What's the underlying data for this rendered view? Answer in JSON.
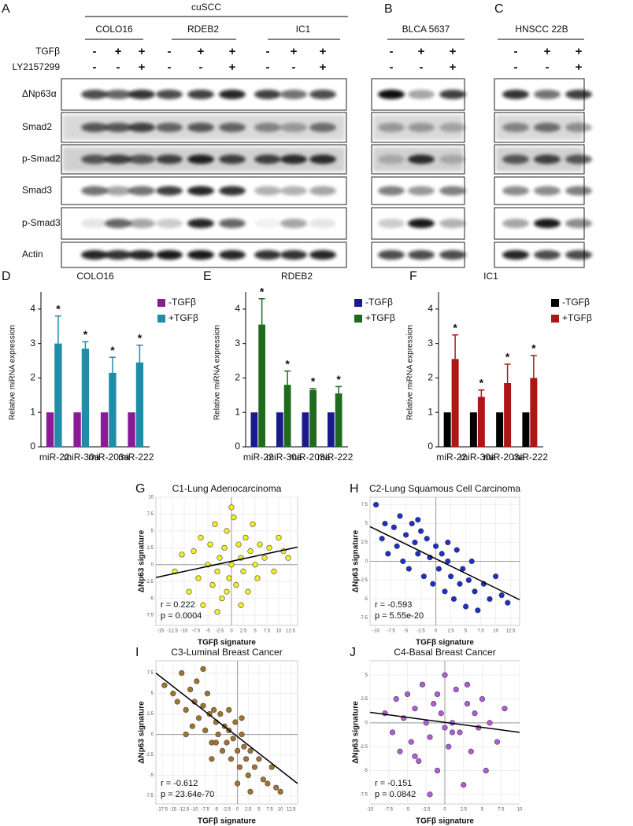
{
  "blots": {
    "panels": [
      {
        "label": "A",
        "group": "cuSCC",
        "cell_lines": [
          "COLO16",
          "RDEB2",
          "IC1"
        ]
      },
      {
        "label": "B",
        "cell_lines": [
          "BLCA 5637"
        ]
      },
      {
        "label": "C",
        "cell_lines": [
          "HNSCC 22B"
        ]
      }
    ],
    "treatments": [
      {
        "name": "TGFβ",
        "signs": [
          "-",
          "+",
          "+",
          "-",
          "+",
          "+",
          "-",
          "+",
          "+",
          "-",
          "+",
          "+",
          "-",
          "+",
          "+"
        ]
      },
      {
        "name": "LY2157299",
        "signs": [
          "-",
          "-",
          "+",
          "-",
          "-",
          "+",
          "-",
          "-",
          "+",
          "-",
          "-",
          "+",
          "-",
          "-",
          "+"
        ]
      }
    ],
    "proteins": [
      "ΔNp63α",
      "Smad2",
      "p-Smad2",
      "Smad3",
      "p-Smad3",
      "Actin"
    ]
  },
  "chart_data": [
    {
      "type": "bar",
      "panel": "D",
      "title": "COLO16",
      "y_label": "Relative miRNA expression",
      "categories": [
        "miR-22",
        "miR-30a",
        "miR-203a",
        "miR-222"
      ],
      "series": [
        {
          "name": "-TGFβ",
          "color": "#8b1a96",
          "values": [
            1,
            1,
            1,
            1
          ]
        },
        {
          "name": "+TGFβ",
          "color": "#1f8ca8",
          "values": [
            3.0,
            2.85,
            2.15,
            2.45
          ],
          "errors": [
            0.8,
            0.2,
            0.45,
            0.5
          ],
          "significance": [
            "*",
            "*",
            "*",
            "*"
          ]
        }
      ],
      "ylim": [
        0,
        4.5
      ],
      "yticks": [
        0,
        1,
        2,
        3,
        4
      ]
    },
    {
      "type": "bar",
      "panel": "E",
      "title": "RDEB2",
      "y_label": "Relative miRNA expression",
      "categories": [
        "miR-22",
        "miR-30a",
        "miR-203a",
        "miR-222"
      ],
      "series": [
        {
          "name": "-TGFβ",
          "color": "#1a1a8c",
          "values": [
            1,
            1,
            1,
            1
          ]
        },
        {
          "name": "+TGFβ",
          "color": "#1e6b1e",
          "values": [
            3.55,
            1.8,
            1.65,
            1.55
          ],
          "errors": [
            0.75,
            0.4,
            0.04,
            0.2
          ],
          "significance": [
            "*",
            "*",
            "*",
            "*"
          ]
        }
      ],
      "ylim": [
        0,
        4.5
      ],
      "yticks": [
        0,
        1,
        2,
        3,
        4
      ]
    },
    {
      "type": "bar",
      "panel": "F",
      "title": "IC1",
      "y_label": "Relative miRNA expression",
      "categories": [
        "miR-22",
        "miR-30a",
        "miR-203a",
        "miR-222"
      ],
      "series": [
        {
          "name": "-TGFβ",
          "color": "#000000",
          "values": [
            1,
            1,
            1,
            1
          ]
        },
        {
          "name": "+TGFβ",
          "color": "#b01515",
          "values": [
            2.55,
            1.45,
            1.85,
            2.0
          ],
          "errors": [
            0.7,
            0.2,
            0.55,
            0.65
          ],
          "significance": [
            "*",
            "*",
            "*",
            "*"
          ]
        }
      ],
      "ylim": [
        0,
        4.5
      ],
      "yticks": [
        0,
        1,
        2,
        3,
        4
      ]
    },
    {
      "type": "scatter",
      "panel": "G",
      "title": "C1-Lung Adenocarcinoma",
      "x_label": "TGFβ signature",
      "y_label": "ΔNp63 signature",
      "annotations": [
        "r = 0.222",
        "p = 0.0004"
      ],
      "color": "#f0f020",
      "x": [
        -12,
        -10.5,
        -9,
        -8,
        -7,
        -6.5,
        -6,
        -5,
        -4.5,
        -4,
        -3.5,
        -3,
        -2.5,
        -2,
        -1.5,
        -1,
        -0.5,
        0,
        0.5,
        1,
        1.5,
        2,
        2.5,
        3,
        3.5,
        4,
        4.5,
        5,
        5.5,
        6,
        7,
        8,
        9,
        10,
        11,
        12,
        -3,
        0,
        2,
        -1
      ],
      "y": [
        -1,
        1.5,
        -4,
        2,
        -2,
        4,
        -6,
        0,
        3,
        -3,
        6,
        -1,
        1,
        -5,
        2.5,
        5,
        -2,
        0,
        7,
        -3,
        3,
        1,
        -1,
        4,
        -4,
        2,
        6,
        0,
        -2,
        3,
        1,
        2.5,
        -1,
        4,
        2,
        1,
        -7,
        8.5,
        -6,
        -4
      ],
      "trend_line": {
        "x": [
          -16,
          14
        ],
        "y": [
          -1.9,
          2.6
        ]
      },
      "xlim": [
        -16,
        14
      ],
      "xticks": [
        -15,
        -12.5,
        -10,
        -7.5,
        -5,
        -2.5,
        0,
        2.5,
        5,
        7.5,
        10,
        12.5
      ],
      "ylim": [
        -9,
        10
      ],
      "yticks": [
        -7.5,
        -5,
        -2.5,
        0,
        2.5,
        5,
        7.5,
        10
      ],
      "grid": true
    },
    {
      "type": "scatter",
      "panel": "H",
      "title": "C2-Lung Squamous Cell Carcinoma",
      "x_label": "TGFβ signature",
      "y_label": "ΔNp63 signature",
      "annotations": [
        "r = -0.593",
        "p = 5.55e-20"
      ],
      "color": "#1c2fc8",
      "x": [
        -10,
        -9,
        -8.5,
        -8,
        -7,
        -6.5,
        -6,
        -5.5,
        -5,
        -4.5,
        -4,
        -3.5,
        -3,
        -2.5,
        -2,
        -1.5,
        -1,
        -0.5,
        0,
        0.5,
        1,
        1.5,
        2,
        2.5,
        3,
        3.5,
        4,
        4.5,
        5,
        5.5,
        6,
        6.5,
        7,
        8,
        9,
        10,
        11,
        12,
        -3,
        2
      ],
      "y": [
        7.5,
        3,
        5,
        1,
        4.5,
        2,
        6,
        0,
        3.5,
        -1,
        5,
        2.5,
        1,
        4,
        -2,
        3,
        0.5,
        -3,
        2,
        -1,
        1,
        -4,
        0,
        -2,
        -5,
        1.5,
        -3,
        -1,
        -6,
        -2.5,
        0,
        -4,
        -6.5,
        -3,
        -5,
        -2,
        -4.5,
        -5.5,
        5.5,
        2.5
      ],
      "trend_line": {
        "x": [
          -11,
          14
        ],
        "y": [
          4.6,
          -5.1
        ]
      },
      "xlim": [
        -11,
        14
      ],
      "xticks": [
        -10,
        -7.5,
        -5,
        -2.5,
        0,
        2.5,
        5,
        7.5,
        10,
        12.5
      ],
      "ylim": [
        -8.5,
        8.5
      ],
      "yticks": [
        -7.5,
        -5,
        -2.5,
        0,
        2.5,
        5,
        7.5
      ],
      "grid": true
    },
    {
      "type": "scatter",
      "panel": "I",
      "title": "C3-Luminal Breast Cancer",
      "x_label": "TGFβ signature",
      "y_label": "ΔNp63 signature",
      "annotations": [
        "r = -0.612",
        "p = 23.64e-70"
      ],
      "color": "#a0732e",
      "x": [
        -17,
        -15,
        -14,
        -13,
        -12,
        -11,
        -10.5,
        -10,
        -9.5,
        -9,
        -8,
        -7.5,
        -7,
        -6.5,
        -6,
        -5.5,
        -5,
        -4.5,
        -4,
        -3.5,
        -3,
        -2.5,
        -2,
        -1.5,
        -1,
        -0.5,
        0,
        0.5,
        1,
        1.5,
        2,
        2.5,
        3,
        4,
        5,
        6,
        7,
        8,
        9,
        10,
        -8,
        -5,
        -2,
        1,
        3,
        -12,
        -6,
        0
      ],
      "y": [
        6,
        5,
        4,
        7.5,
        3,
        5.5,
        1,
        4,
        6.5,
        2,
        3.5,
        0.5,
        5,
        2.5,
        -1,
        3,
        1.5,
        0,
        2.5,
        -2,
        1,
        -1,
        0.5,
        -3,
        -0.5,
        1.5,
        -2,
        -4,
        0,
        -1.5,
        -3,
        -5,
        -2,
        -4,
        -3,
        -5.5,
        -6,
        -4,
        -6.5,
        -7,
        8,
        -1,
        3,
        2,
        -7,
        0,
        -3,
        -6
      ],
      "trend_line": {
        "x": [
          -19,
          14
        ],
        "y": [
          7.5,
          -6
        ]
      },
      "xlim": [
        -19,
        14
      ],
      "xticks": [
        -17.5,
        -15,
        -12.5,
        -10,
        -7.5,
        -5,
        -2.5,
        0,
        2.5,
        5,
        7.5,
        10,
        12.5
      ],
      "ylim": [
        -8.5,
        9
      ],
      "yticks": [
        -7.5,
        -5,
        -2.5,
        0,
        2.5,
        5,
        7.5
      ],
      "grid": true
    },
    {
      "type": "scatter",
      "panel": "J",
      "title": "C4-Basal Breast Cancer",
      "x_label": "TGFβ signature",
      "y_label": "ΔNp63 signature",
      "annotations": [
        "r = -0.151",
        "p = 0.0842"
      ],
      "color": "#b35ad6",
      "x": [
        -8,
        -7,
        -6.5,
        -6,
        -5.5,
        -5,
        -4.5,
        -4,
        -3.5,
        -3,
        -2.5,
        -2,
        -1.5,
        -1,
        -0.5,
        0,
        0.5,
        1,
        1.5,
        2,
        2.5,
        3,
        3.5,
        4,
        4.5,
        5,
        5.5,
        6,
        7,
        8,
        -2,
        0,
        3,
        -4,
        1,
        -1
      ],
      "y": [
        1,
        -1,
        2.5,
        -3,
        0.5,
        3,
        -2,
        1.5,
        -4,
        4,
        0,
        -1.5,
        2,
        -5,
        1,
        5,
        -2.5,
        0,
        3.5,
        -1,
        -6.5,
        2,
        -3,
        1,
        -0.5,
        2.5,
        -5,
        0,
        -2,
        1.5,
        -7.5,
        -0.5,
        4,
        -3.5,
        -1,
        3
      ],
      "trend_line": {
        "x": [
          -10,
          10
        ],
        "y": [
          1.1,
          -1
        ]
      },
      "xlim": [
        -10,
        10
      ],
      "xticks": [
        -10,
        -7.5,
        -5,
        -2.5,
        0,
        2.5,
        5,
        7.5,
        10
      ],
      "ylim": [
        -8.5,
        6.5
      ],
      "yticks": [
        -7.5,
        -5,
        -2.5,
        0,
        2.5,
        5
      ],
      "grid": true
    }
  ]
}
